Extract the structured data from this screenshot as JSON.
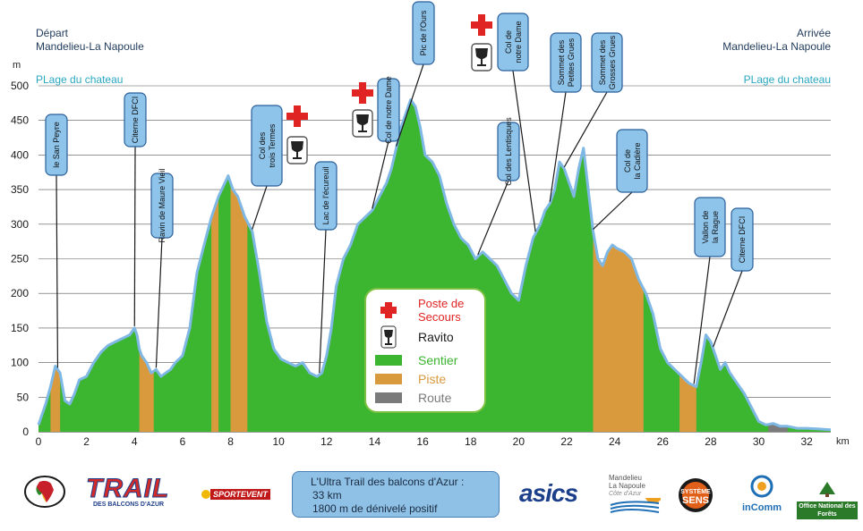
{
  "header": {
    "start_label": "Départ",
    "start_location": "Mandelieu-La Napoule",
    "end_label": "Arrivée",
    "end_location": "Mandelieu-La Napoule",
    "start_beach": "PLage du chateau",
    "end_beach": "PLage du chateau"
  },
  "chart_data": {
    "type": "area",
    "ylabel": "m",
    "xlabel": "km",
    "xlim": [
      0,
      33
    ],
    "ylim": [
      0,
      500
    ],
    "x_ticks": [
      0,
      2,
      4,
      6,
      8,
      10,
      12,
      14,
      16,
      18,
      20,
      22,
      24,
      26,
      28,
      30,
      32
    ],
    "y_ticks": [
      0,
      50,
      100,
      150,
      200,
      250,
      300,
      350,
      400,
      450,
      500
    ],
    "grid": "horizontal",
    "x": [
      0,
      0.3,
      0.5,
      0.7,
      0.9,
      1.1,
      1.3,
      1.5,
      1.7,
      2.0,
      2.3,
      2.6,
      2.9,
      3.2,
      3.5,
      3.8,
      4.0,
      4.1,
      4.2,
      4.3,
      4.5,
      4.7,
      4.9,
      5.1,
      5.3,
      5.5,
      5.7,
      6.0,
      6.3,
      6.6,
      6.9,
      7.2,
      7.5,
      7.7,
      7.9,
      8.1,
      8.3,
      8.6,
      8.9,
      9.2,
      9.5,
      9.8,
      10.1,
      10.4,
      10.7,
      11.0,
      11.3,
      11.6,
      11.8,
      12.0,
      12.2,
      12.4,
      12.7,
      13.0,
      13.3,
      13.6,
      13.9,
      14.2,
      14.5,
      14.7,
      14.9,
      15.1,
      15.3,
      15.5,
      15.7,
      15.9,
      16.1,
      16.4,
      16.7,
      17.0,
      17.3,
      17.6,
      17.9,
      18.2,
      18.5,
      18.8,
      19.1,
      19.4,
      19.7,
      20.0,
      20.3,
      20.6,
      20.9,
      21.1,
      21.3,
      21.5,
      21.7,
      21.9,
      22.1,
      22.3,
      22.5,
      22.7,
      22.9,
      23.1,
      23.3,
      23.5,
      23.7,
      23.9,
      24.1,
      24.4,
      24.7,
      25.0,
      25.3,
      25.6,
      25.9,
      26.2,
      26.5,
      26.8,
      27.1,
      27.4,
      27.6,
      27.8,
      28.0,
      28.2,
      28.4,
      28.6,
      28.8,
      29.1,
      29.4,
      29.7,
      30.0,
      30.3,
      30.6,
      30.9,
      31.2,
      31.6,
      32.0,
      32.5,
      33.0
    ],
    "elevation": [
      10,
      40,
      65,
      95,
      85,
      45,
      40,
      55,
      75,
      80,
      100,
      115,
      125,
      130,
      135,
      140,
      150,
      140,
      120,
      110,
      100,
      85,
      90,
      80,
      85,
      90,
      100,
      110,
      150,
      230,
      270,
      310,
      340,
      355,
      370,
      350,
      340,
      310,
      290,
      230,
      160,
      120,
      105,
      100,
      95,
      100,
      85,
      80,
      85,
      110,
      150,
      210,
      250,
      270,
      300,
      310,
      320,
      340,
      360,
      380,
      410,
      440,
      460,
      480,
      470,
      440,
      400,
      390,
      370,
      330,
      300,
      280,
      270,
      250,
      260,
      250,
      240,
      220,
      200,
      190,
      240,
      280,
      300,
      320,
      330,
      350,
      390,
      380,
      360,
      340,
      380,
      410,
      350,
      290,
      250,
      240,
      260,
      270,
      265,
      260,
      250,
      220,
      200,
      170,
      120,
      100,
      90,
      80,
      70,
      65,
      100,
      140,
      130,
      110,
      90,
      100,
      85,
      70,
      55,
      35,
      15,
      10,
      12,
      8,
      8,
      5,
      5,
      4,
      3
    ],
    "surface_series": [
      {
        "name": "Sentier",
        "color": "#3cb531"
      },
      {
        "name": "Piste",
        "color": "#d99a3e",
        "segments": [
          [
            0.5,
            0.9
          ],
          [
            4.2,
            4.8
          ],
          [
            7.2,
            7.5
          ],
          [
            8.0,
            8.7
          ],
          [
            23.1,
            25.2
          ],
          [
            26.7,
            27.4
          ]
        ]
      },
      {
        "name": "Route",
        "color": "#7a7a7a",
        "segments": [
          [
            30.4,
            31.2
          ]
        ]
      }
    ],
    "annotations": [
      {
        "label": "le San Peyre",
        "x": 0.8
      },
      {
        "label": "Citerne DFCI",
        "x": 4.0
      },
      {
        "label": "Ravin de Maure Vieil",
        "x": 4.9
      },
      {
        "label": "Col des trois Termes",
        "x": 8.9
      },
      {
        "label": "Lac de l'écureuil",
        "x": 11.7
      },
      {
        "label": "Col de notre Dame",
        "x": 13.9
      },
      {
        "label": "Pic de l'Ours",
        "x": 14.9
      },
      {
        "label": "Col des Lentisques",
        "x": 18.3
      },
      {
        "label": "Col de notre Dame",
        "x": 20.7
      },
      {
        "label": "Sommet des Petites Grues",
        "x": 21.3
      },
      {
        "label": "Sommet des Grosses Grues",
        "x": 21.9
      },
      {
        "label": "Col de la Cadière",
        "x": 23.1
      },
      {
        "label": "Vallon de la Rague",
        "x": 27.3
      },
      {
        "label": "Citerne DFCI",
        "x": 28.1
      }
    ],
    "aid_stations": [
      {
        "x": 9.6
      },
      {
        "x": 12.7
      },
      {
        "x": 17.4
      }
    ]
  },
  "legend": {
    "items": [
      {
        "label": "Poste de Secours",
        "line1": "Poste de",
        "line2": "Secours",
        "icon": "red-cross-icon",
        "color": "#e02424"
      },
      {
        "label": "Ravito",
        "icon": "wine-glass-icon",
        "color": "#1a1a1a"
      },
      {
        "label": "Sentier",
        "color": "#3cb531"
      },
      {
        "label": "Piste",
        "color": "#d99a3e"
      },
      {
        "label": "Route",
        "color": "#7a7a7a"
      }
    ]
  },
  "race_info": {
    "title": "L'Ultra Trail des balcons d'Azur :",
    "distance": "33 km",
    "elevation_gain": "1800 m de dénivelé positif"
  },
  "sponsors": {
    "trail_word": "TRAIL",
    "trail_sub": "DES BALCONS D'AZUR",
    "sport_event": "SPORTEVENT",
    "asics": "asics",
    "mandelieu_line1": "Mandelieu",
    "mandelieu_line2": "La Napoule",
    "mandelieu_line3": "Côte d'Azur",
    "systeme_sens_line1": "SYSTÈME",
    "systeme_sens_line2": "SENS",
    "incomm": "inComm",
    "onf": "Office National des Forêts"
  }
}
